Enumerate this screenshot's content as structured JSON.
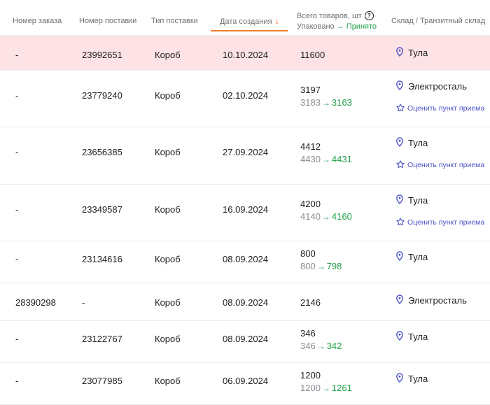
{
  "header": {
    "order_no": "Номер заказа",
    "supply_no": "Номер поставки",
    "supply_type": "Тип поставки",
    "created_date": "Дата создания",
    "total_goods": "Всего товаров, шт",
    "packed": "Упаковано",
    "accepted": "Принято",
    "warehouse": "Склад / Транзитный склад"
  },
  "icons": {
    "sort": "arrow-down-icon",
    "help": "question-circle-icon",
    "location": "map-pin-icon",
    "rate": "star-outline-icon"
  },
  "colors": {
    "accent_sort": "#f47c2b",
    "accepted_green": "#22a24a",
    "link_blue": "#4b54c9",
    "row_highlight": "#fde3e5"
  },
  "rate_label": "Оценить пункт приема",
  "rows": [
    {
      "order": "-",
      "supply": "23992651",
      "type": "Короб",
      "date": "10.10.2024",
      "total": "11600",
      "packed": "",
      "accepted": "",
      "warehouse": "Тула",
      "rate": false,
      "highlight": true
    },
    {
      "order": "-",
      "supply": "23779240",
      "type": "Короб",
      "date": "02.10.2024",
      "total": "3197",
      "packed": "3183",
      "accepted": "3163",
      "warehouse": "Электросталь",
      "rate": true
    },
    {
      "order": "-",
      "supply": "23656385",
      "type": "Короб",
      "date": "27.09.2024",
      "total": "4412",
      "packed": "4430",
      "accepted": "4431",
      "warehouse": "Тула",
      "rate": true
    },
    {
      "order": "-",
      "supply": "23349587",
      "type": "Короб",
      "date": "16.09.2024",
      "total": "4200",
      "packed": "4140",
      "accepted": "4160",
      "warehouse": "Тула",
      "rate": true
    },
    {
      "order": "-",
      "supply": "23134616",
      "type": "Короб",
      "date": "08.09.2024",
      "total": "800",
      "packed": "800",
      "accepted": "798",
      "warehouse": "Тула",
      "rate": false
    },
    {
      "order": "28390298",
      "supply": "-",
      "type": "Короб",
      "date": "08.09.2024",
      "total": "2146",
      "packed": "",
      "accepted": "",
      "warehouse": "Электросталь",
      "rate": false
    },
    {
      "order": "-",
      "supply": "23122767",
      "type": "Короб",
      "date": "08.09.2024",
      "total": "346",
      "packed": "346",
      "accepted": "342",
      "warehouse": "Тула",
      "rate": false
    },
    {
      "order": "-",
      "supply": "23077985",
      "type": "Короб",
      "date": "06.09.2024",
      "total": "1200",
      "packed": "1200",
      "accepted": "1261",
      "warehouse": "Тула",
      "rate": false
    }
  ]
}
